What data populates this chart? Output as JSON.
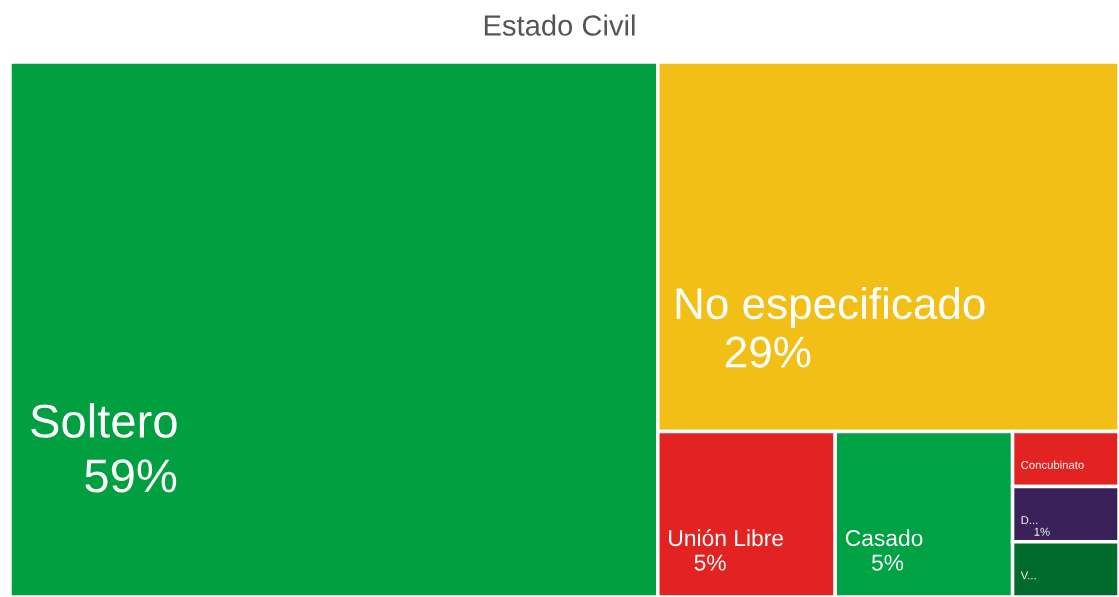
{
  "chart_data": {
    "type": "other",
    "title": "Estado Civil",
    "categories": [
      "Soltero",
      "No especificado",
      "Unión Libre",
      "Casado",
      "Concubinato",
      "D...",
      "V..."
    ],
    "values": [
      59,
      29,
      5,
      5,
      null,
      1,
      null
    ],
    "value_labels": [
      "59%",
      "29%",
      "5%",
      "5%",
      null,
      "1%",
      null
    ],
    "colors": [
      "#00a040",
      "#f2bf17",
      "#e32322",
      "#00a343",
      "#e32322",
      "#3b2159",
      "#006b2c"
    ]
  }
}
